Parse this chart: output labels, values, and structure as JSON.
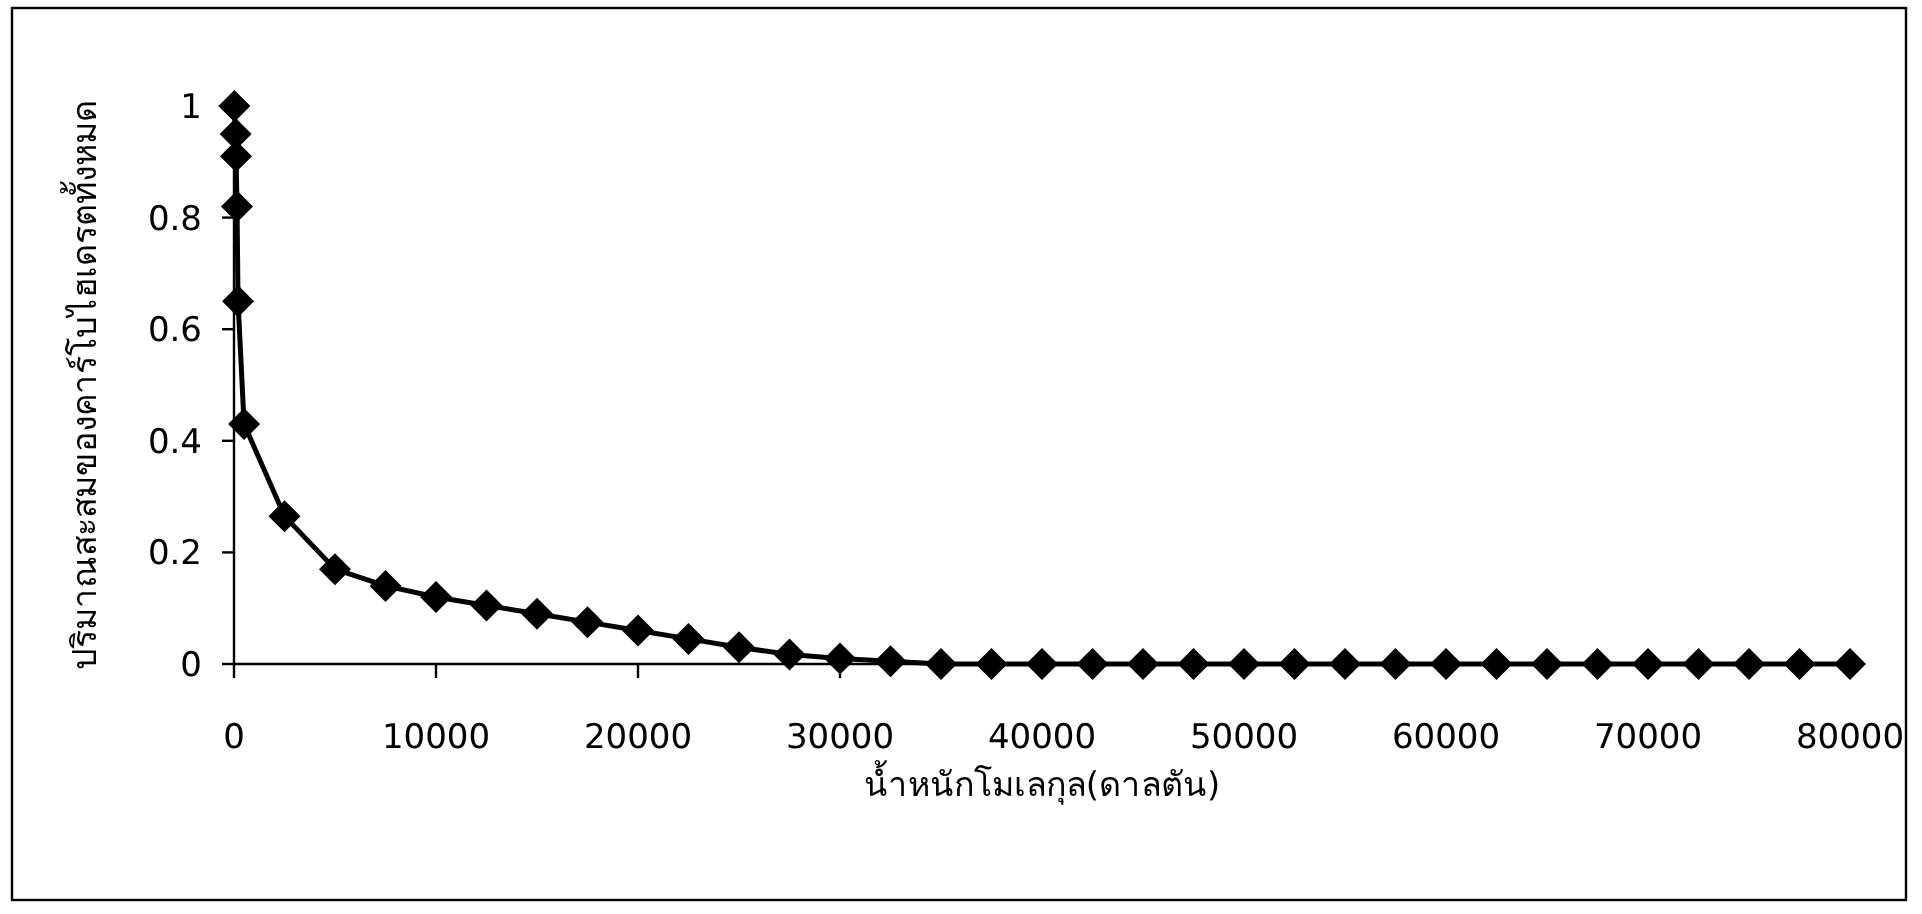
{
  "chart_data": {
    "type": "line",
    "xlabel": "น้ำหนักโมเลกุล(ดาลตัน)",
    "ylabel": "ปริมาณสะสมของคาร์โบไฮเดรตทั้งหมด",
    "xlim": [
      0,
      80000
    ],
    "ylim": [
      0,
      1
    ],
    "xticks": [
      0,
      10000,
      20000,
      30000,
      40000,
      50000,
      60000,
      70000,
      80000
    ],
    "yticks": [
      0,
      0.2,
      0.4,
      0.6,
      0.8,
      1
    ],
    "grid": false,
    "marker": "diamond",
    "line_style": "solid",
    "series": [
      {
        "color": "#000000",
        "x": [
          20,
          80,
          100,
          150,
          200,
          500,
          2500,
          5000,
          7500,
          10000,
          12500,
          15000,
          17500,
          20000,
          22500,
          25000,
          27500,
          30000,
          32500,
          35000,
          37500,
          40000,
          42500,
          45000,
          47500,
          50000,
          52500,
          55000,
          57500,
          60000,
          62500,
          65000,
          67500,
          70000,
          72500,
          75000,
          77500,
          80000
        ],
        "values": [
          1.0,
          0.95,
          0.91,
          0.82,
          0.65,
          0.43,
          0.265,
          0.17,
          0.14,
          0.12,
          0.105,
          0.09,
          0.075,
          0.06,
          0.045,
          0.03,
          0.017,
          0.01,
          0.005,
          0,
          0,
          0,
          0,
          0,
          0,
          0,
          0,
          0,
          0,
          0,
          0,
          0,
          0,
          0,
          0,
          0,
          0,
          0
        ]
      }
    ]
  }
}
